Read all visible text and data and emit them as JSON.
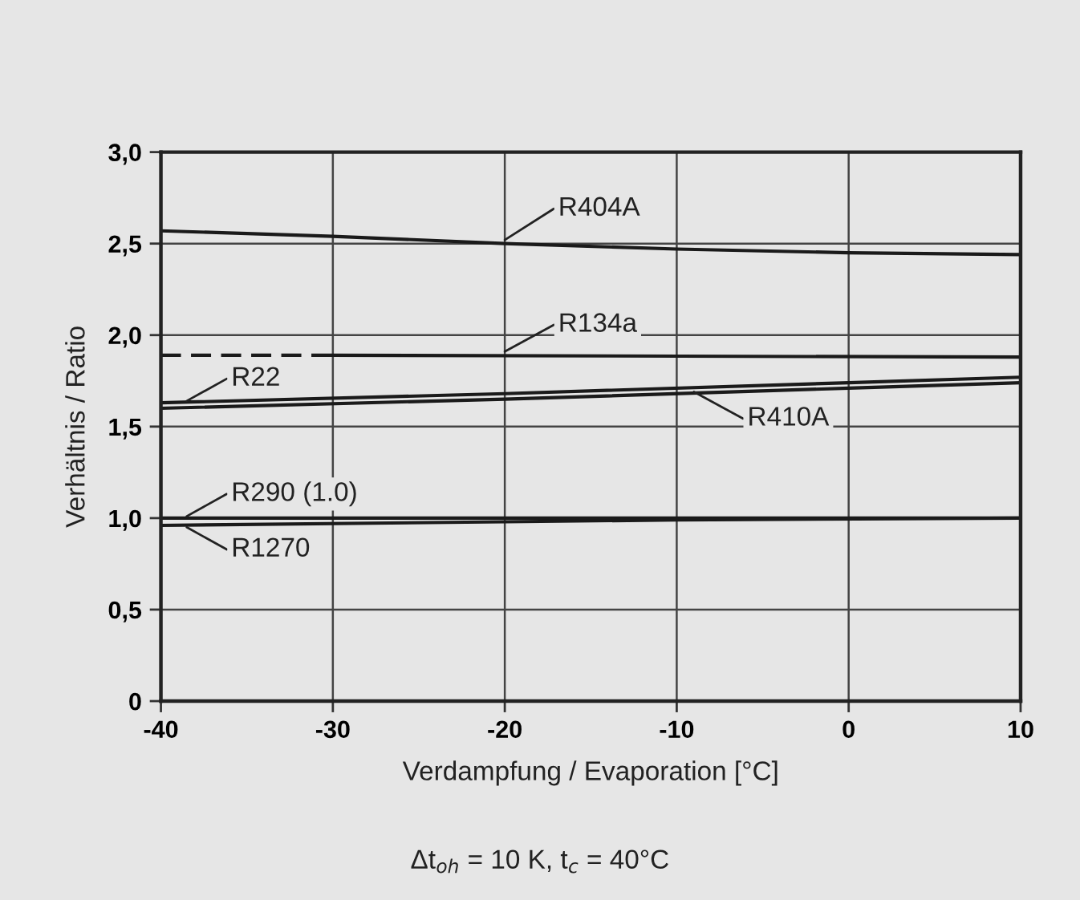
{
  "chart_data": {
    "type": "line",
    "xlabel": "Verdampfung / Evaporation [°C]",
    "ylabel": "Verhältnis / Ratio",
    "xlim": [
      -40,
      10
    ],
    "xticks": [
      -40,
      -30,
      -20,
      -10,
      0,
      10
    ],
    "ylim": [
      0,
      3
    ],
    "yticks": [
      0,
      {
        "value": 0.5,
        "label": "0,5"
      },
      {
        "value": 1,
        "label": "1,0"
      },
      {
        "value": 1.5,
        "label": "1,5"
      },
      {
        "value": 2,
        "label": "2,0"
      },
      {
        "value": 2.5,
        "label": "2,5"
      },
      {
        "value": 3,
        "label": "3,0"
      }
    ],
    "grid": true,
    "legend": false,
    "marker": "none",
    "series": [
      {
        "color": "#1a1a1a",
        "x": [
          -40,
          -30,
          -20,
          -10,
          0,
          10
        ],
        "values": [
          2.57,
          2.54,
          2.5,
          2.47,
          2.45,
          2.44
        ]
      },
      {
        "color": "#1a1a1a",
        "line_style": "dashed",
        "x": [
          -40,
          -30
        ],
        "values": [
          1.89,
          1.89
        ]
      },
      {
        "color": "#1a1a1a",
        "x": [
          -30,
          10
        ],
        "values": [
          1.89,
          1.88
        ]
      },
      {
        "color": "#1a1a1a",
        "x": [
          -40,
          -20,
          0,
          10
        ],
        "values": [
          1.63,
          1.68,
          1.74,
          1.77
        ]
      },
      {
        "color": "#1a1a1a",
        "x": [
          -40,
          -20,
          0,
          10
        ],
        "values": [
          1.6,
          1.65,
          1.71,
          1.74
        ]
      },
      {
        "color": "#1a1a1a",
        "x": [
          -40,
          10
        ],
        "values": [
          1.0,
          1.0
        ]
      },
      {
        "color": "#1a1a1a",
        "x": [
          -40,
          -20,
          -10,
          10
        ],
        "values": [
          0.96,
          0.98,
          0.99,
          1.0
        ]
      }
    ],
    "annotations": [
      {
        "text": "R404A",
        "x": -20,
        "y": 2.52
      },
      {
        "text": "R134a",
        "x": -20,
        "y": 1.91
      },
      {
        "text": "R22",
        "x": -38.5,
        "y": 1.64
      },
      {
        "text": "R410A",
        "x": -9,
        "y": 1.69
      },
      {
        "text": "R290 (1.0)",
        "x": -38.5,
        "y": 1.01
      },
      {
        "text": "R1270",
        "x": -38.5,
        "y": 0.95
      },
      "Δt$_{oh}$ = 10 K, t$_{c}$ = 40°C"
    ]
  }
}
